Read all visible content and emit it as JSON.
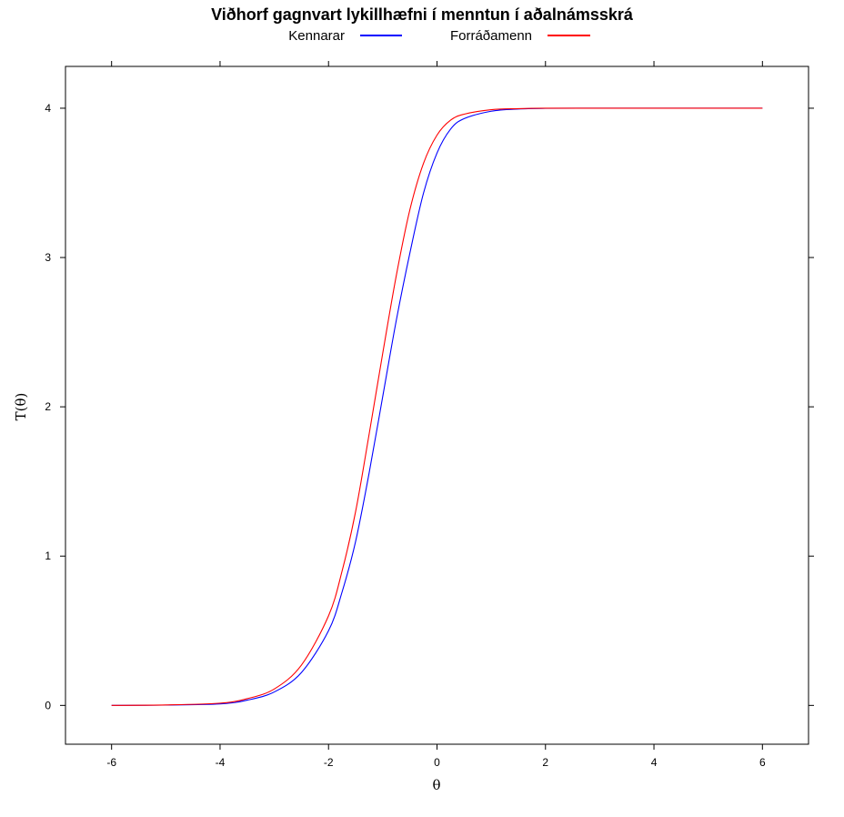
{
  "chart_data": {
    "type": "line",
    "title": "Viðhorf gagnvart lykillhæfni í menntun í aðalnámsskrá",
    "xlabel": "θ",
    "ylabel": "T(θ)",
    "xlim": [
      -6.85,
      6.85
    ],
    "ylim": [
      -0.26,
      4.28
    ],
    "xticks": [
      -6,
      -4,
      -2,
      0,
      2,
      4,
      6
    ],
    "yticks": [
      0,
      1,
      2,
      3,
      4
    ],
    "xtick_labels": [
      "-6",
      "-4",
      "-2",
      "0",
      "2",
      "4",
      "6"
    ],
    "ytick_labels": [
      "0",
      "1",
      "2",
      "3",
      "4"
    ],
    "grid": false,
    "legend_position": "top",
    "series": [
      {
        "name": "Kennarar",
        "color": "#0000ff",
        "x": [
          -6,
          -5,
          -4,
          -3.5,
          -3,
          -2.5,
          -2,
          -1.75,
          -1.5,
          -1.25,
          -1,
          -0.75,
          -0.5,
          -0.25,
          0,
          0.25,
          0.5,
          1,
          1.5,
          2,
          3,
          4,
          5,
          6
        ],
        "y": [
          0.0,
          0.002,
          0.01,
          0.035,
          0.09,
          0.22,
          0.5,
          0.76,
          1.1,
          1.56,
          2.07,
          2.58,
          3.03,
          3.43,
          3.7,
          3.86,
          3.93,
          3.98,
          3.995,
          3.999,
          4.0,
          4.0,
          4.0,
          4.0
        ]
      },
      {
        "name": "Forráðamenn",
        "color": "#ff0000",
        "x": [
          -6,
          -5,
          -4,
          -3.5,
          -3,
          -2.5,
          -2,
          -1.75,
          -1.5,
          -1.25,
          -1,
          -0.75,
          -0.5,
          -0.25,
          0,
          0.25,
          0.5,
          1,
          1.5,
          2,
          3,
          4,
          5,
          6
        ],
        "y": [
          0.0,
          0.003,
          0.015,
          0.045,
          0.11,
          0.27,
          0.6,
          0.9,
          1.3,
          1.82,
          2.36,
          2.88,
          3.32,
          3.63,
          3.82,
          3.92,
          3.96,
          3.99,
          3.997,
          4.0,
          4.0,
          4.0,
          4.0,
          4.0
        ]
      }
    ]
  }
}
